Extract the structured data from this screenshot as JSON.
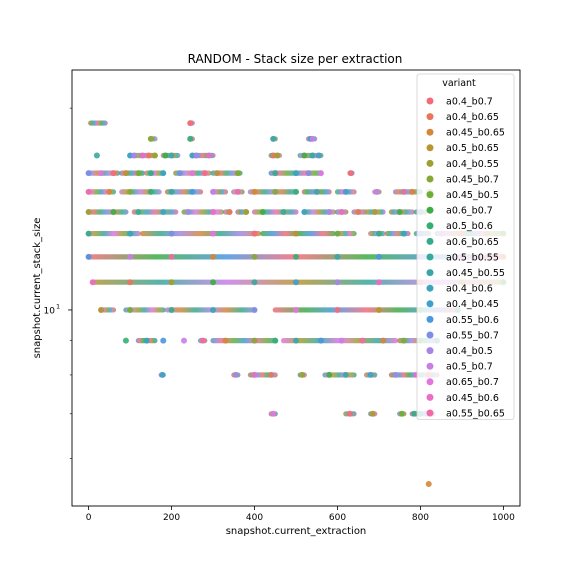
{
  "chart_data": {
    "type": "scatter",
    "title": "RANDOM - Stack size per extraction",
    "xlabel": "snapshot.current_extraction",
    "ylabel": "snapshot.current_stack_size",
    "xlim": [
      -40,
      1040
    ],
    "ylim": [
      5.1,
      22.8
    ],
    "yscale": "log",
    "xticks": [
      0,
      200,
      400,
      600,
      800,
      1000
    ],
    "yticks": [
      {
        "value": 10,
        "base": "10",
        "exp": "1"
      }
    ],
    "y_levels": [
      5.5,
      6,
      7,
      8,
      9,
      10,
      11,
      12,
      13,
      14,
      15,
      16,
      17,
      18,
      19
    ],
    "grid": false,
    "legend": {
      "title": "variant",
      "placement": "top-right",
      "entries": [
        {
          "name": "a0.4_b0.7",
          "color": "#f46a7a"
        },
        {
          "name": "a0.4_b0.65",
          "color": "#e8765a"
        },
        {
          "name": "a0.45_b0.65",
          "color": "#d4863a"
        },
        {
          "name": "a0.5_b0.65",
          "color": "#b89432"
        },
        {
          "name": "a0.4_b0.55",
          "color": "#9ea032"
        },
        {
          "name": "a0.45_b0.7",
          "color": "#86a834"
        },
        {
          "name": "a0.45_b0.5",
          "color": "#6cae36"
        },
        {
          "name": "a0.6_b0.7",
          "color": "#3eac44"
        },
        {
          "name": "a0.5_b0.6",
          "color": "#36ae72"
        },
        {
          "name": "a0.6_b0.65",
          "color": "#36aa8c"
        },
        {
          "name": "a0.5_b0.55",
          "color": "#38a89c"
        },
        {
          "name": "a0.45_b0.55",
          "color": "#38a6a8"
        },
        {
          "name": "a0.4_b0.6",
          "color": "#3aa4b8"
        },
        {
          "name": "a0.4_b0.45",
          "color": "#3ea0cc"
        },
        {
          "name": "a0.55_b0.6",
          "color": "#4a96e0"
        },
        {
          "name": "a0.55_b0.7",
          "color": "#7c8ee6"
        },
        {
          "name": "a0.4_b0.5",
          "color": "#a486e4"
        },
        {
          "name": "a0.5_b0.7",
          "color": "#c97ee6"
        },
        {
          "name": "a0.65_b0.7",
          "color": "#e374e0"
        },
        {
          "name": "a0.45_b0.6",
          "color": "#ec6cc6"
        },
        {
          "name": "a0.55_b0.65",
          "color": "#f06aa6"
        }
      ]
    },
    "bands": [
      {
        "y": 19,
        "segments": [
          [
            5,
            40
          ],
          [
            245,
            250
          ]
        ],
        "points": [
          245
        ]
      },
      {
        "y": 18,
        "segments": [
          [
            150,
            160
          ],
          [
            245,
            250
          ],
          [
            445,
            450
          ],
          [
            530,
            545
          ]
        ],
        "points": [
          150,
          245,
          445,
          535,
          540
        ]
      },
      {
        "y": 17,
        "segments": [
          [
            20,
            20
          ],
          [
            100,
            160
          ],
          [
            180,
            215
          ],
          [
            250,
            300
          ],
          [
            440,
            460
          ],
          [
            510,
            560
          ]
        ],
        "points": [
          20,
          100,
          110,
          130,
          145,
          160,
          185,
          200,
          250,
          260,
          290,
          445,
          455,
          520,
          540,
          555
        ]
      },
      {
        "y": 16,
        "segments": [
          [
            0,
            70
          ],
          [
            80,
            130
          ],
          [
            140,
            180
          ],
          [
            210,
            290
          ],
          [
            300,
            365
          ],
          [
            440,
            560
          ],
          [
            630,
            635
          ]
        ],
        "points": [
          0,
          30,
          60,
          90,
          120,
          150,
          180,
          220,
          250,
          280,
          310,
          360,
          450,
          500,
          530,
          560,
          632
        ]
      },
      {
        "y": 15,
        "segments": [
          [
            0,
            60
          ],
          [
            80,
            170
          ],
          [
            190,
            270
          ],
          [
            300,
            330
          ],
          [
            350,
            370
          ],
          [
            390,
            500
          ],
          [
            520,
            580
          ],
          [
            600,
            640
          ],
          [
            690,
            700
          ],
          [
            740,
            800
          ],
          [
            820,
            825
          ]
        ],
        "points": [
          0,
          50,
          100,
          150,
          200,
          250,
          300,
          360,
          400,
          450,
          500,
          550,
          620,
          695,
          760,
          780,
          822
        ]
      },
      {
        "y": 14,
        "segments": [
          [
            0,
            90
          ],
          [
            110,
            210
          ],
          [
            230,
            320
          ],
          [
            330,
            340
          ],
          [
            360,
            380
          ],
          [
            400,
            500
          ],
          [
            520,
            590
          ],
          [
            600,
            620
          ],
          [
            640,
            665
          ],
          [
            670,
            710
          ],
          [
            730,
            780
          ],
          [
            790,
            810
          ]
        ],
        "points": [
          0,
          60,
          120,
          180,
          240,
          300,
          340,
          380,
          420,
          470,
          520,
          580,
          610,
          650,
          690,
          750,
          800
        ]
      },
      {
        "y": 13,
        "segments": [
          [
            0,
            120
          ],
          [
            130,
            410
          ],
          [
            420,
            590
          ],
          [
            600,
            640
          ],
          [
            680,
            710
          ],
          [
            720,
            770
          ],
          [
            790,
            820
          ],
          [
            840,
            1000
          ]
        ],
        "points": [
          0,
          100,
          200,
          300,
          400,
          500,
          600,
          700,
          760,
          800,
          850,
          900,
          960,
          1000
        ]
      },
      {
        "y": 12,
        "segments": [
          [
            0,
            1000
          ]
        ],
        "points": [
          0,
          100,
          200,
          300,
          400,
          500,
          600,
          700,
          800,
          900,
          1000
        ]
      },
      {
        "y": 11,
        "segments": [
          [
            10,
            1000
          ]
        ],
        "points": [
          10,
          100,
          200,
          300,
          400,
          500,
          600,
          700,
          800,
          900,
          1000
        ]
      },
      {
        "y": 10,
        "segments": [
          [
            30,
            60
          ],
          [
            90,
            180
          ],
          [
            190,
            400
          ],
          [
            450,
            890
          ]
        ],
        "points": [
          30,
          100,
          200,
          300,
          400,
          500,
          600,
          700,
          800,
          890
        ]
      },
      {
        "y": 9,
        "segments": [
          [
            90,
            90
          ],
          [
            120,
            160
          ],
          [
            180,
            180
          ],
          [
            230,
            230
          ],
          [
            270,
            280
          ],
          [
            300,
            450
          ],
          [
            470,
            740
          ],
          [
            750,
            840
          ]
        ],
        "points": [
          90,
          140,
          180,
          230,
          275,
          330,
          400,
          450,
          500,
          560,
          610,
          660,
          710,
          760,
          800,
          840
        ]
      },
      {
        "y": 8,
        "segments": [
          [
            175,
            180
          ],
          [
            350,
            360
          ],
          [
            390,
            450
          ],
          [
            510,
            520
          ],
          [
            570,
            640
          ],
          [
            670,
            690
          ],
          [
            730,
            790
          ],
          [
            800,
            840
          ]
        ],
        "points": [
          178,
          355,
          400,
          440,
          515,
          580,
          620,
          680,
          740,
          790,
          820
        ]
      },
      {
        "y": 7,
        "segments": [
          [
            440,
            450
          ],
          [
            620,
            640
          ],
          [
            680,
            690
          ],
          [
            750,
            760
          ],
          [
            780,
            790
          ],
          [
            790,
            830
          ]
        ],
        "points": [
          445,
          630,
          685,
          755,
          785,
          800,
          815,
          825
        ]
      },
      {
        "y": 5.5,
        "segments": [
          [
            820,
            820
          ]
        ],
        "points": [
          820
        ]
      }
    ]
  }
}
